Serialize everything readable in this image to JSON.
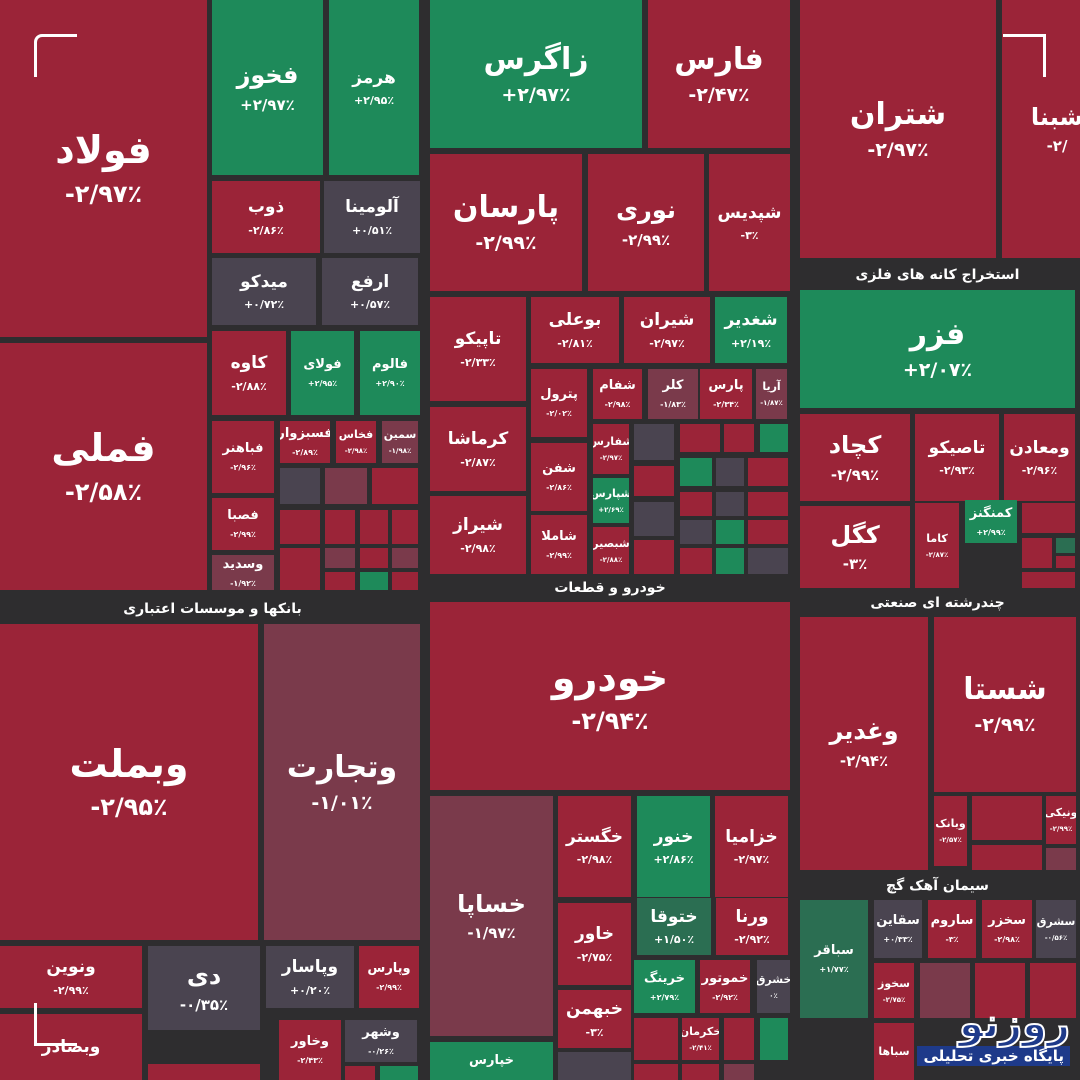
{
  "colors": {
    "red": "#9b2438",
    "green": "#1e8a5a",
    "gray": "#4a4450",
    "dull": "#7a3a4b",
    "dgreen": "#2b6e52",
    "bg": "#2e2d2f"
  },
  "sectors": [
    {
      "label": "بانکها و موسسات اعتباری"
    },
    {
      "label": "خودرو و قطعات"
    },
    {
      "label": "استخراج کانه های فلزی"
    },
    {
      "label": "چندرشته ای صنعتی"
    },
    {
      "label": "سیمان آهک گچ"
    }
  ],
  "tiles": [
    {
      "name": "فولاد",
      "change": "-۲/۹۷٪",
      "status": "red"
    },
    {
      "name": "فخوز",
      "change": "+۲/۹۷٪",
      "status": "green"
    },
    {
      "name": "هرمز",
      "change": "+۲/۹۵٪",
      "status": "green"
    },
    {
      "name": "ذوب",
      "change": "-۲/۸۶٪",
      "status": "red"
    },
    {
      "name": "آلومینا",
      "change": "+۰/۵۱٪",
      "status": "gray"
    },
    {
      "name": "میدکو",
      "change": "+۰/۷۲٪",
      "status": "gray"
    },
    {
      "name": "ارفع",
      "change": "+۰/۵۷٪",
      "status": "gray"
    },
    {
      "name": "فملی",
      "change": "-۲/۵۸٪",
      "status": "red"
    },
    {
      "name": "کاوه",
      "change": "-۲/۸۸٪",
      "status": "red"
    },
    {
      "name": "فولای",
      "change": "+۲/۹۵٪",
      "status": "green"
    },
    {
      "name": "فالوم",
      "change": "+۲/۹۰٪",
      "status": "green"
    },
    {
      "name": "فباهنر",
      "change": "-۲/۹۶٪",
      "status": "red"
    },
    {
      "name": "فسبزوار",
      "change": "-۲/۸۹٪",
      "status": "red"
    },
    {
      "name": "فخاس",
      "change": "-۲/۹۸٪",
      "status": "red"
    },
    {
      "name": "سمین",
      "change": "-۱/۹۸٪",
      "status": "dull"
    },
    {
      "name": "فصبا",
      "change": "-۲/۹۹٪",
      "status": "red"
    },
    {
      "name": "وسدید",
      "change": "-۱/۹۲٪",
      "status": "dull"
    },
    {
      "name": "وبملت",
      "change": "-۲/۹۵٪",
      "status": "red"
    },
    {
      "name": "وتجارت",
      "change": "-۱/۰۱٪",
      "status": "dull"
    },
    {
      "name": "ونوین",
      "change": "-۲/۹۹٪",
      "status": "red"
    },
    {
      "name": "دی",
      "change": "-۰/۳۵٪",
      "status": "gray"
    },
    {
      "name": "وپاسار",
      "change": "+۰/۲۰٪",
      "status": "gray"
    },
    {
      "name": "وپارس",
      "change": "-۲/۹۹٪",
      "status": "red"
    },
    {
      "name": "وبصادر",
      "change": "",
      "status": "red"
    },
    {
      "name": "وخاور",
      "change": "-۲/۴۳٪",
      "status": "red"
    },
    {
      "name": "وشهر",
      "change": "-۰/۲۶٪",
      "status": "gray"
    },
    {
      "name": "زاگرس",
      "change": "+۲/۹۷٪",
      "status": "green"
    },
    {
      "name": "فارس",
      "change": "-۲/۴۷٪",
      "status": "red"
    },
    {
      "name": "پارسان",
      "change": "-۲/۹۹٪",
      "status": "red"
    },
    {
      "name": "نوری",
      "change": "-۲/۹۹٪",
      "status": "red"
    },
    {
      "name": "شپدیس",
      "change": "-۳٪",
      "status": "red"
    },
    {
      "name": "تاپیکو",
      "change": "-۲/۳۳٪",
      "status": "red"
    },
    {
      "name": "کرماشا",
      "change": "-۲/۸۷٪",
      "status": "red"
    },
    {
      "name": "شیراز",
      "change": "-۲/۹۸٪",
      "status": "red"
    },
    {
      "name": "بوعلی",
      "change": "-۲/۸۱٪",
      "status": "red"
    },
    {
      "name": "شیران",
      "change": "-۲/۹۷٪",
      "status": "red"
    },
    {
      "name": "شغدیر",
      "change": "+۲/۱۹٪",
      "status": "green"
    },
    {
      "name": "پترول",
      "change": "-۲/۰۲٪",
      "status": "red"
    },
    {
      "name": "شفام",
      "change": "-۲/۹۸٪",
      "status": "red"
    },
    {
      "name": "کلر",
      "change": "-۱/۸۳٪",
      "status": "dull"
    },
    {
      "name": "پارس",
      "change": "-۲/۳۴٪",
      "status": "red"
    },
    {
      "name": "آریا",
      "change": "-۱/۸۷٪",
      "status": "dull"
    },
    {
      "name": "شفن",
      "change": "-۲/۸۶٪",
      "status": "red"
    },
    {
      "name": "شاملا",
      "change": "-۲/۹۹٪",
      "status": "red"
    },
    {
      "name": "شفارس",
      "change": "-۲/۹۷٪",
      "status": "red"
    },
    {
      "name": "شپارس",
      "change": "+۲/۶۹٪",
      "status": "green"
    },
    {
      "name": "شبصیر",
      "change": "-۲/۸۸٪",
      "status": "red"
    },
    {
      "name": "خودرو",
      "change": "-۲/۹۴٪",
      "status": "red"
    },
    {
      "name": "خساپا",
      "change": "-۱/۹۷٪",
      "status": "dull"
    },
    {
      "name": "خپارس",
      "change": "",
      "status": "green"
    },
    {
      "name": "خگستر",
      "change": "-۲/۹۸٪",
      "status": "red"
    },
    {
      "name": "خنور",
      "change": "+۲/۸۶٪",
      "status": "green"
    },
    {
      "name": "خزامیا",
      "change": "-۲/۹۷٪",
      "status": "red"
    },
    {
      "name": "خاور",
      "change": "-۲/۷۵٪",
      "status": "red"
    },
    {
      "name": "ختوقا",
      "change": "+۱/۵۰٪",
      "status": "dgreen"
    },
    {
      "name": "ورنا",
      "change": "-۲/۹۲٪",
      "status": "red"
    },
    {
      "name": "خرینگ",
      "change": "+۲/۷۹٪",
      "status": "green"
    },
    {
      "name": "خموتور",
      "change": "-۲/۹۲٪",
      "status": "red"
    },
    {
      "name": "خشرق",
      "change": "۰٪",
      "status": "gray"
    },
    {
      "name": "خبهمن",
      "change": "-۳٪",
      "status": "red"
    },
    {
      "name": "خکرمان",
      "change": "-۲/۴۱٪",
      "status": "red"
    },
    {
      "name": "شتران",
      "change": "-۲/۹۷٪",
      "status": "red"
    },
    {
      "name": "شبنا",
      "change": "-۲/",
      "status": "red"
    },
    {
      "name": "فزر",
      "change": "+۲/۰۷٪",
      "status": "green"
    },
    {
      "name": "کچاد",
      "change": "-۲/۹۹٪",
      "status": "red"
    },
    {
      "name": "تاصیکو",
      "change": "-۲/۹۳٪",
      "status": "red"
    },
    {
      "name": "ومعادن",
      "change": "-۲/۹۶٪",
      "status": "red"
    },
    {
      "name": "کگل",
      "change": "-۳٪",
      "status": "red"
    },
    {
      "name": "کاما",
      "change": "-۲/۸۷٪",
      "status": "red"
    },
    {
      "name": "کمنگنز",
      "change": "+۲/۹۹٪",
      "status": "green"
    },
    {
      "name": "وغدیر",
      "change": "-۲/۹۴٪",
      "status": "red"
    },
    {
      "name": "شستا",
      "change": "-۲/۹۹٪",
      "status": "red"
    },
    {
      "name": "وبانک",
      "change": "-۲/۵۷٪",
      "status": "red"
    },
    {
      "name": "ونیکی",
      "change": "-۲/۹۹٪",
      "status": "red"
    },
    {
      "name": "سباقر",
      "change": "+۱/۷۷٪",
      "status": "dgreen"
    },
    {
      "name": "سقاین",
      "change": "+۰/۳۳٪",
      "status": "gray"
    },
    {
      "name": "ساروم",
      "change": "-۳٪",
      "status": "red"
    },
    {
      "name": "سخزر",
      "change": "-۲/۹۸٪",
      "status": "red"
    },
    {
      "name": "سشرق",
      "change": "-۰/۵۶٪",
      "status": "gray"
    },
    {
      "name": "سخوز",
      "change": "-۲/۷۵٪",
      "status": "red"
    },
    {
      "name": "سباها",
      "change": "",
      "status": "red"
    }
  ],
  "logo": {
    "name": "روزنو",
    "tagline": "پایگاه خبری تحلیلی"
  }
}
